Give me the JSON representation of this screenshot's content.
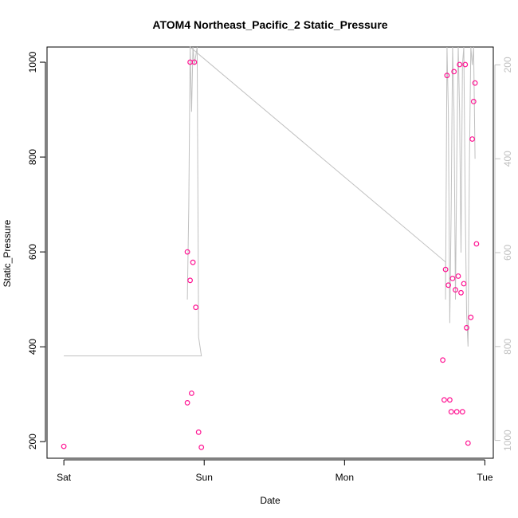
{
  "chart_data": {
    "type": "scatter",
    "title": "ATOM4 Northeast_Pacific_2 Static_Pressure",
    "xlabel": "Date",
    "ylabel": "Static_Pressure",
    "x_ticks": [
      {
        "value": 0,
        "label": "Sat"
      },
      {
        "value": 1,
        "label": "Sun"
      },
      {
        "value": 2,
        "label": "Mon"
      },
      {
        "value": 3,
        "label": "Tue"
      }
    ],
    "xlim": [
      -0.12,
      3.06
    ],
    "y_ticks": [
      200,
      400,
      600,
      800,
      1000
    ],
    "ylim": [
      165,
      1032
    ],
    "right_ticks": [
      200,
      400,
      600,
      800,
      1000
    ],
    "right_ylim": [
      1038,
      162
    ],
    "grid": false,
    "point_color": "#ff1493",
    "line_color": "#c0c0c0",
    "points": [
      {
        "x": 0.0,
        "y": 190
      },
      {
        "x": 0.88,
        "y": 282
      },
      {
        "x": 0.88,
        "y": 600
      },
      {
        "x": 0.9,
        "y": 1000
      },
      {
        "x": 0.9,
        "y": 540
      },
      {
        "x": 0.91,
        "y": 302
      },
      {
        "x": 0.92,
        "y": 578
      },
      {
        "x": 0.93,
        "y": 1000
      },
      {
        "x": 0.94,
        "y": 483
      },
      {
        "x": 0.96,
        "y": 220
      },
      {
        "x": 0.98,
        "y": 188
      },
      {
        "x": 2.7,
        "y": 372
      },
      {
        "x": 2.71,
        "y": 288
      },
      {
        "x": 2.72,
        "y": 563
      },
      {
        "x": 2.73,
        "y": 972
      },
      {
        "x": 2.74,
        "y": 530
      },
      {
        "x": 2.75,
        "y": 288
      },
      {
        "x": 2.76,
        "y": 263
      },
      {
        "x": 2.77,
        "y": 544
      },
      {
        "x": 2.78,
        "y": 980
      },
      {
        "x": 2.79,
        "y": 520
      },
      {
        "x": 2.8,
        "y": 263
      },
      {
        "x": 2.81,
        "y": 549
      },
      {
        "x": 2.82,
        "y": 995
      },
      {
        "x": 2.83,
        "y": 514
      },
      {
        "x": 2.84,
        "y": 263
      },
      {
        "x": 2.85,
        "y": 533
      },
      {
        "x": 2.86,
        "y": 995
      },
      {
        "x": 2.87,
        "y": 440
      },
      {
        "x": 2.88,
        "y": 197
      },
      {
        "x": 2.9,
        "y": 462
      },
      {
        "x": 2.91,
        "y": 838
      },
      {
        "x": 2.92,
        "y": 917
      },
      {
        "x": 2.93,
        "y": 956
      },
      {
        "x": 2.94,
        "y": 617
      }
    ],
    "line_series": {
      "axis": "right",
      "points": [
        [
          0.0,
          820
        ],
        [
          0.98,
          820
        ],
        [
          0.98,
          820
        ],
        [
          0.96,
          780
        ],
        [
          0.95,
          0
        ],
        [
          0.93,
          200
        ],
        [
          0.92,
          0
        ],
        [
          0.91,
          300
        ],
        [
          0.9,
          0
        ],
        [
          0.89,
          500
        ],
        [
          0.88,
          700
        ],
        [
          0.88,
          700
        ],
        [
          0.89,
          500
        ],
        [
          0.9,
          0
        ],
        [
          2.72,
          620
        ],
        [
          2.72,
          700
        ],
        [
          2.73,
          0
        ],
        [
          2.74,
          300
        ],
        [
          2.75,
          750
        ],
        [
          2.76,
          500
        ],
        [
          2.77,
          0
        ],
        [
          2.78,
          300
        ],
        [
          2.79,
          700
        ],
        [
          2.8,
          400
        ],
        [
          2.81,
          0
        ],
        [
          2.82,
          300
        ],
        [
          2.83,
          600
        ],
        [
          2.84,
          200
        ],
        [
          2.85,
          0
        ],
        [
          2.86,
          500
        ],
        [
          2.87,
          730
        ],
        [
          2.88,
          800
        ],
        [
          2.89,
          400
        ],
        [
          2.9,
          0
        ],
        [
          2.91,
          200
        ],
        [
          2.92,
          0
        ],
        [
          2.93,
          400
        ]
      ]
    }
  }
}
